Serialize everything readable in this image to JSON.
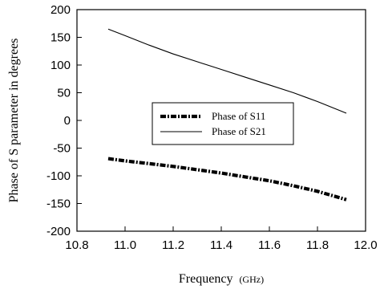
{
  "chart_data": {
    "type": "line",
    "xlabel": "Frequency",
    "xlabel_unit": "(GHz)",
    "ylabel": "Phase of S parameter in degrees",
    "xlim": [
      10.8,
      12.0
    ],
    "ylim": [
      -200,
      200
    ],
    "x_ticks": [
      "10.8",
      "11.0",
      "11.2",
      "11.4",
      "11.6",
      "11.8",
      "12.0"
    ],
    "y_ticks": [
      "200",
      "150",
      "100",
      "50",
      "0",
      "-50",
      "-100",
      "-150",
      "-200"
    ],
    "grid": false,
    "legend_position": "center",
    "series": [
      {
        "name": "Phase of S11",
        "style": "dashdot-thick",
        "x": [
          10.93,
          11.0,
          11.1,
          11.2,
          11.3,
          11.4,
          11.5,
          11.6,
          11.7,
          11.8,
          11.92
        ],
        "y": [
          -69,
          -73,
          -78,
          -83,
          -89,
          -95,
          -102,
          -109,
          -118,
          -128,
          -143
        ]
      },
      {
        "name": "Phase of S21",
        "style": "solid-thin",
        "x": [
          10.93,
          11.0,
          11.1,
          11.2,
          11.3,
          11.4,
          11.5,
          11.6,
          11.7,
          11.8,
          11.92
        ],
        "y": [
          165,
          153,
          136,
          120,
          106,
          92,
          78,
          64,
          50,
          34,
          13
        ]
      }
    ]
  }
}
